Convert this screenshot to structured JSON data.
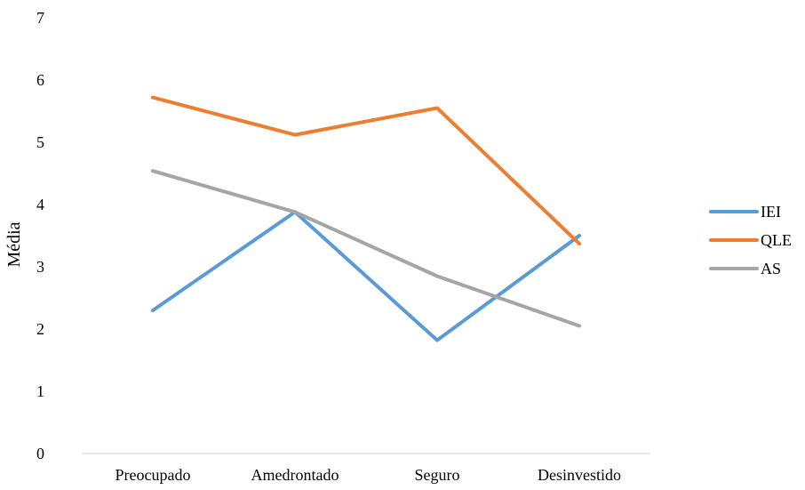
{
  "chart_data": {
    "type": "line",
    "title": "",
    "xlabel": "",
    "ylabel": "Média",
    "ylim": [
      0,
      7
    ],
    "yticks": [
      "0",
      "1",
      "2",
      "3",
      "4",
      "5",
      "6",
      "7"
    ],
    "grid": false,
    "legend_position": "right",
    "categories": [
      "Preocupado",
      "Amedrontado",
      "Seguro",
      "Desinvestido"
    ],
    "series": [
      {
        "name": "IEI",
        "color": "#5B9BD5",
        "values": [
          2.3,
          3.88,
          1.82,
          3.5
        ]
      },
      {
        "name": "QLE",
        "color": "#ED7D31",
        "values": [
          5.72,
          5.12,
          5.55,
          3.37
        ]
      },
      {
        "name": "AS",
        "color": "#A5A5A5",
        "values": [
          4.54,
          3.88,
          2.85,
          2.05
        ]
      }
    ]
  }
}
